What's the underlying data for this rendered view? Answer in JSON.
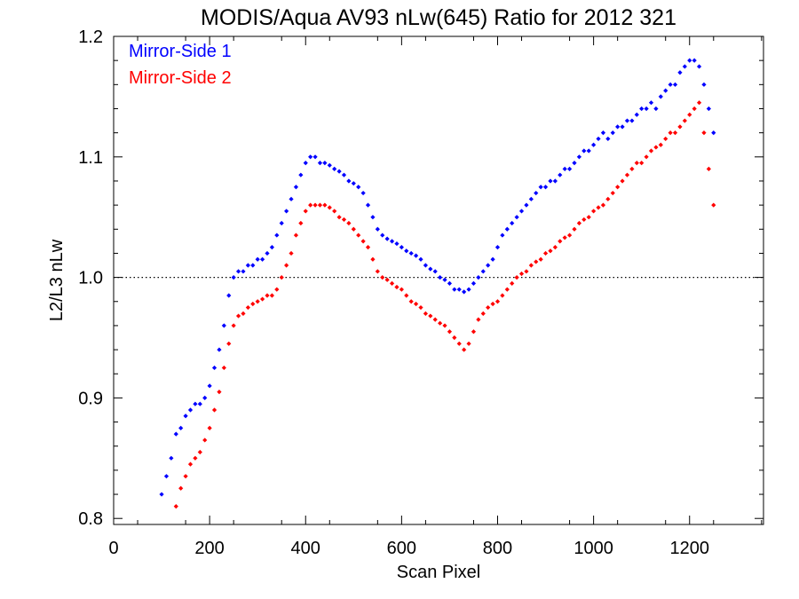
{
  "chart_data": {
    "type": "scatter",
    "title": "MODIS/Aqua AV93 nLw(645) Ratio for 2012 321",
    "xlabel": "Scan Pixel",
    "ylabel": "L2/L3 nLw",
    "xlim": [
      0,
      1354
    ],
    "ylim": [
      0.795,
      1.2
    ],
    "xticks": [
      0,
      200,
      400,
      600,
      800,
      1000,
      1200
    ],
    "xtick_labels": [
      "0",
      "200",
      "400",
      "600",
      "800",
      "1000",
      "1200"
    ],
    "yticks": [
      0.8,
      0.9,
      1.0,
      1.1,
      1.2
    ],
    "ytick_labels": [
      "0.8",
      "0.9",
      "1.0",
      "1.1",
      "1.2"
    ],
    "reference_line": {
      "y": 1.0,
      "style": "dotted"
    },
    "legend_position": "top-left",
    "colors": {
      "side1": "#0000ff",
      "side2": "#ff0000",
      "axis": "#000000"
    },
    "series": [
      {
        "name": "Mirror-Side 1",
        "color": "#0000ff",
        "x": [
          100,
          110,
          120,
          130,
          140,
          150,
          160,
          170,
          180,
          190,
          200,
          210,
          220,
          230,
          240,
          250,
          260,
          270,
          280,
          290,
          300,
          310,
          320,
          330,
          340,
          350,
          360,
          370,
          380,
          390,
          400,
          410,
          420,
          430,
          440,
          450,
          460,
          470,
          480,
          490,
          500,
          510,
          520,
          530,
          540,
          550,
          560,
          570,
          580,
          590,
          600,
          610,
          620,
          630,
          640,
          650,
          660,
          670,
          680,
          690,
          700,
          710,
          720,
          730,
          740,
          750,
          760,
          770,
          780,
          790,
          800,
          810,
          820,
          830,
          840,
          850,
          860,
          870,
          880,
          890,
          900,
          910,
          920,
          930,
          940,
          950,
          960,
          970,
          980,
          990,
          1000,
          1010,
          1020,
          1030,
          1040,
          1050,
          1060,
          1070,
          1080,
          1090,
          1100,
          1110,
          1120,
          1130,
          1140,
          1150,
          1160,
          1170,
          1180,
          1190,
          1200,
          1210,
          1220,
          1230,
          1240,
          1250
        ],
        "y": [
          0.82,
          0.835,
          0.85,
          0.87,
          0.875,
          0.885,
          0.89,
          0.895,
          0.895,
          0.9,
          0.91,
          0.925,
          0.94,
          0.96,
          0.985,
          1.0,
          1.005,
          1.005,
          1.01,
          1.01,
          1.015,
          1.015,
          1.02,
          1.025,
          1.035,
          1.045,
          1.055,
          1.065,
          1.075,
          1.085,
          1.095,
          1.1,
          1.1,
          1.095,
          1.095,
          1.093,
          1.09,
          1.088,
          1.085,
          1.08,
          1.078,
          1.075,
          1.07,
          1.06,
          1.05,
          1.04,
          1.035,
          1.032,
          1.03,
          1.028,
          1.025,
          1.022,
          1.02,
          1.018,
          1.015,
          1.01,
          1.007,
          1.005,
          1.0,
          0.998,
          0.995,
          0.99,
          0.99,
          0.988,
          0.99,
          0.995,
          1.0,
          1.005,
          1.01,
          1.015,
          1.025,
          1.035,
          1.04,
          1.045,
          1.05,
          1.055,
          1.06,
          1.065,
          1.07,
          1.075,
          1.075,
          1.08,
          1.08,
          1.085,
          1.09,
          1.09,
          1.095,
          1.1,
          1.105,
          1.105,
          1.11,
          1.115,
          1.12,
          1.115,
          1.12,
          1.125,
          1.125,
          1.13,
          1.13,
          1.135,
          1.14,
          1.14,
          1.145,
          1.14,
          1.15,
          1.155,
          1.16,
          1.16,
          1.17,
          1.175,
          1.18,
          1.18,
          1.175,
          1.16,
          1.14,
          1.12
        ]
      },
      {
        "name": "Mirror-Side 2",
        "color": "#ff0000",
        "x": [
          130,
          140,
          150,
          160,
          170,
          180,
          190,
          200,
          210,
          220,
          230,
          240,
          250,
          260,
          270,
          280,
          290,
          300,
          310,
          320,
          330,
          340,
          350,
          360,
          370,
          380,
          390,
          400,
          410,
          420,
          430,
          440,
          450,
          460,
          470,
          480,
          490,
          500,
          510,
          520,
          530,
          540,
          550,
          560,
          570,
          580,
          590,
          600,
          610,
          620,
          630,
          640,
          650,
          660,
          670,
          680,
          690,
          700,
          710,
          720,
          730,
          740,
          750,
          760,
          770,
          780,
          790,
          800,
          810,
          820,
          830,
          840,
          850,
          860,
          870,
          880,
          890,
          900,
          910,
          920,
          930,
          940,
          950,
          960,
          970,
          980,
          990,
          1000,
          1010,
          1020,
          1030,
          1040,
          1050,
          1060,
          1070,
          1080,
          1090,
          1100,
          1110,
          1120,
          1130,
          1140,
          1150,
          1160,
          1170,
          1180,
          1190,
          1200,
          1210,
          1220,
          1230,
          1240,
          1250
        ],
        "y": [
          0.81,
          0.825,
          0.835,
          0.845,
          0.85,
          0.855,
          0.865,
          0.875,
          0.89,
          0.905,
          0.925,
          0.945,
          0.96,
          0.968,
          0.97,
          0.975,
          0.978,
          0.98,
          0.982,
          0.985,
          0.985,
          0.99,
          1.0,
          1.01,
          1.02,
          1.035,
          1.045,
          1.055,
          1.06,
          1.06,
          1.06,
          1.06,
          1.058,
          1.055,
          1.05,
          1.048,
          1.045,
          1.04,
          1.035,
          1.03,
          1.025,
          1.015,
          1.005,
          1.0,
          0.998,
          0.995,
          0.992,
          0.99,
          0.985,
          0.98,
          0.978,
          0.975,
          0.97,
          0.968,
          0.965,
          0.962,
          0.96,
          0.955,
          0.95,
          0.945,
          0.94,
          0.945,
          0.955,
          0.965,
          0.97,
          0.975,
          0.978,
          0.98,
          0.985,
          0.99,
          0.995,
          1.0,
          1.003,
          1.005,
          1.01,
          1.013,
          1.015,
          1.02,
          1.022,
          1.025,
          1.03,
          1.033,
          1.035,
          1.04,
          1.045,
          1.048,
          1.05,
          1.055,
          1.058,
          1.06,
          1.065,
          1.07,
          1.075,
          1.08,
          1.085,
          1.09,
          1.095,
          1.095,
          1.1,
          1.105,
          1.108,
          1.11,
          1.115,
          1.12,
          1.12,
          1.125,
          1.13,
          1.135,
          1.14,
          1.145,
          1.12,
          1.09,
          1.06
        ]
      }
    ]
  }
}
